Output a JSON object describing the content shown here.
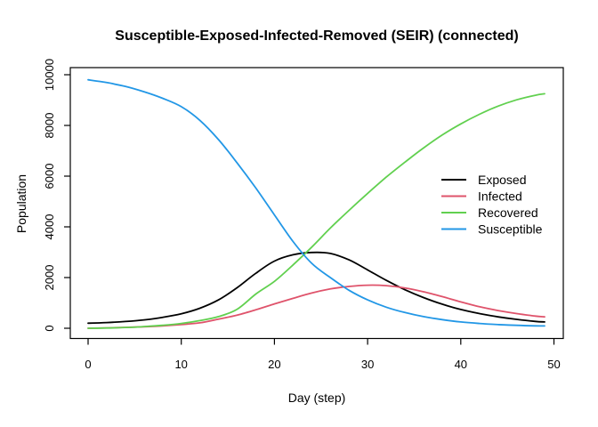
{
  "chart_data": {
    "type": "line",
    "title": "Susceptible-Exposed-Infected-Removed (SEIR) (connected)",
    "xlabel": "Day (step)",
    "ylabel": "Population",
    "xlim": [
      0,
      50
    ],
    "ylim": [
      0,
      10000
    ],
    "x_ticks": [
      0,
      10,
      20,
      30,
      40,
      50
    ],
    "y_ticks": [
      0,
      2000,
      4000,
      6000,
      8000,
      10000
    ],
    "grid": false,
    "legend_position": "right-center",
    "axis_color": "#000000",
    "x": [
      0,
      2,
      4,
      6,
      8,
      10,
      12,
      14,
      16,
      18,
      20,
      22,
      24,
      26,
      28,
      30,
      32,
      34,
      36,
      38,
      40,
      42,
      44,
      46,
      48,
      49
    ],
    "series": [
      {
        "name": "Exposed",
        "color": "#000000",
        "values": [
          200,
          225,
          265,
          330,
          430,
          570,
          790,
          1120,
          1600,
          2170,
          2650,
          2900,
          2990,
          2950,
          2700,
          2300,
          1890,
          1520,
          1210,
          950,
          740,
          580,
          450,
          350,
          270,
          250
        ]
      },
      {
        "name": "Infected",
        "color": "#DF536B",
        "values": [
          0,
          15,
          35,
          60,
          95,
          145,
          215,
          360,
          520,
          730,
          960,
          1180,
          1390,
          1550,
          1650,
          1700,
          1680,
          1590,
          1440,
          1250,
          1040,
          850,
          700,
          580,
          480,
          450
        ]
      },
      {
        "name": "Recovered",
        "color": "#61D04F",
        "values": [
          0,
          10,
          30,
          65,
          115,
          190,
          300,
          460,
          750,
          1350,
          1850,
          2500,
          3200,
          3950,
          4650,
          5320,
          5960,
          6550,
          7110,
          7620,
          8060,
          8440,
          8760,
          9010,
          9190,
          9250
        ]
      },
      {
        "name": "Susceptible",
        "color": "#2297E6",
        "values": [
          9800,
          9690,
          9540,
          9330,
          9070,
          8740,
          8200,
          7440,
          6520,
          5530,
          4470,
          3420,
          2560,
          2000,
          1500,
          1120,
          830,
          620,
          460,
          340,
          250,
          190,
          145,
          115,
          95,
          90
        ]
      }
    ]
  }
}
